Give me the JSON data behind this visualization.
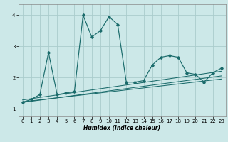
{
  "xlabel": "Humidex (Indice chaleur)",
  "bg_color": "#cce8e8",
  "grid_color": "#aacccc",
  "line_color": "#1a6b6b",
  "xlim": [
    -0.5,
    23.5
  ],
  "ylim": [
    0.75,
    4.35
  ],
  "xticks": [
    0,
    1,
    2,
    3,
    4,
    5,
    6,
    7,
    8,
    9,
    10,
    11,
    12,
    13,
    14,
    15,
    16,
    17,
    18,
    19,
    20,
    21,
    22,
    23
  ],
  "yticks": [
    1,
    2,
    3,
    4
  ],
  "main_line": {
    "x": [
      0,
      1,
      2,
      3,
      4,
      5,
      6,
      7,
      8,
      9,
      10,
      11,
      12,
      13,
      14,
      15,
      16,
      17,
      18,
      19,
      20,
      21,
      22,
      23
    ],
    "y": [
      1.2,
      1.3,
      1.45,
      2.8,
      1.45,
      1.5,
      1.55,
      4.0,
      3.3,
      3.5,
      3.95,
      3.7,
      1.85,
      1.85,
      1.9,
      2.4,
      2.65,
      2.7,
      2.65,
      2.15,
      2.1,
      1.85,
      2.15,
      2.3
    ]
  },
  "trend_lines": [
    {
      "x": [
        0,
        23
      ],
      "y": [
        1.2,
        2.05
      ]
    },
    {
      "x": [
        0,
        23
      ],
      "y": [
        1.22,
        1.95
      ]
    },
    {
      "x": [
        0,
        23
      ],
      "y": [
        1.28,
        2.2
      ]
    }
  ]
}
